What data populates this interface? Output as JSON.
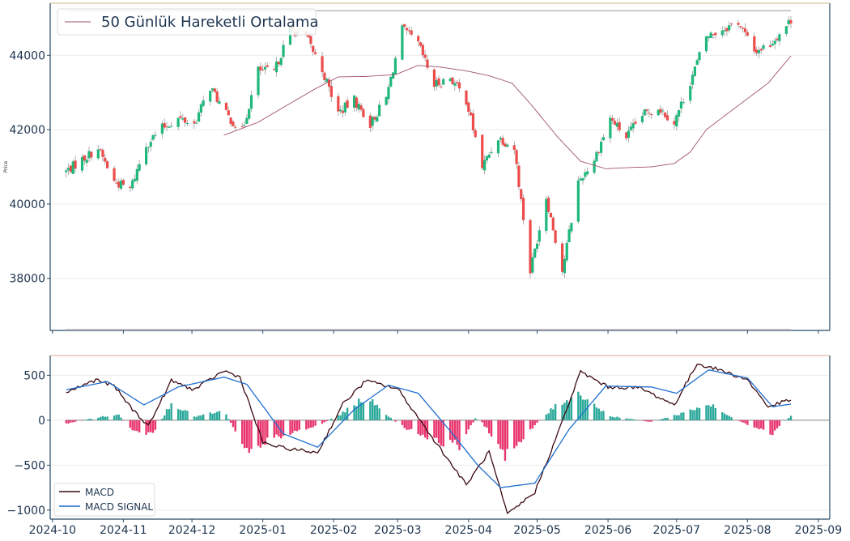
{
  "chart_data": [
    {
      "type": "candlestick",
      "ylabel": "Price",
      "yticks": [
        38000,
        40000,
        42000,
        44000
      ],
      "ylim": [
        36600,
        45400
      ],
      "x_range": [
        "2024-10-07",
        "2025-08-20"
      ],
      "legend": {
        "placement": "top-left",
        "entries": [
          "50 Günlük Hareketli Ortalama"
        ]
      },
      "reference_lines": {
        "upper": 45200,
        "lower": 36620
      },
      "grid": true,
      "up_color": "#1db87a",
      "down_color": "#ee4b4b",
      "ma_color": "#a0526e",
      "anchors": [
        [
          "2024-10-07",
          40880
        ],
        [
          "2024-10-14",
          41200
        ],
        [
          "2024-10-21",
          41500
        ],
        [
          "2024-10-28",
          40600
        ],
        [
          "2024-11-04",
          40400
        ],
        [
          "2024-11-11",
          41600
        ],
        [
          "2024-11-18",
          42050
        ],
        [
          "2024-11-25",
          42300
        ],
        [
          "2024-12-02",
          42150
        ],
        [
          "2024-12-09",
          43150
        ],
        [
          "2024-12-16",
          42400
        ],
        [
          "2024-12-23",
          41950
        ],
        [
          "2024-12-30",
          43600
        ],
        [
          "2025-01-06",
          43550
        ],
        [
          "2025-01-13",
          44700
        ],
        [
          "2025-01-20",
          44500
        ],
        [
          "2025-01-27",
          43600
        ],
        [
          "2025-02-03",
          42450
        ],
        [
          "2025-02-10",
          42800
        ],
        [
          "2025-02-17",
          42150
        ],
        [
          "2025-02-24",
          42850
        ],
        [
          "2025-03-03",
          44700
        ],
        [
          "2025-03-10",
          44300
        ],
        [
          "2025-03-17",
          43200
        ],
        [
          "2025-03-24",
          43400
        ],
        [
          "2025-03-31",
          42800
        ],
        [
          "2025-04-07",
          41000
        ],
        [
          "2025-04-14",
          41800
        ],
        [
          "2025-04-21",
          41500
        ],
        [
          "2025-04-28",
          38200
        ],
        [
          "2025-05-05",
          40200
        ],
        [
          "2025-05-12",
          38200
        ],
        [
          "2025-05-19",
          40600
        ],
        [
          "2025-05-26",
          41200
        ],
        [
          "2025-06-02",
          42300
        ],
        [
          "2025-06-09",
          41800
        ],
        [
          "2025-06-16",
          42400
        ],
        [
          "2025-06-23",
          42600
        ],
        [
          "2025-06-30",
          42200
        ],
        [
          "2025-07-07",
          43300
        ],
        [
          "2025-07-14",
          44500
        ],
        [
          "2025-07-21",
          44700
        ],
        [
          "2025-07-28",
          44900
        ],
        [
          "2025-08-04",
          44100
        ],
        [
          "2025-08-11",
          44300
        ],
        [
          "2025-08-20",
          44950
        ]
      ],
      "ma50": [
        [
          "2024-12-15",
          41850
        ],
        [
          "2024-12-30",
          42200
        ],
        [
          "2025-01-10",
          42600
        ],
        [
          "2025-01-24",
          43100
        ],
        [
          "2025-02-03",
          43420
        ],
        [
          "2025-02-15",
          43430
        ],
        [
          "2025-02-28",
          43480
        ],
        [
          "2025-03-10",
          43730
        ],
        [
          "2025-03-20",
          43680
        ],
        [
          "2025-03-31",
          43580
        ],
        [
          "2025-04-10",
          43450
        ],
        [
          "2025-04-20",
          43250
        ],
        [
          "2025-04-28",
          42700
        ],
        [
          "2025-05-10",
          41800
        ],
        [
          "2025-05-20",
          41150
        ],
        [
          "2025-05-31",
          40950
        ],
        [
          "2025-06-10",
          40980
        ],
        [
          "2025-06-20",
          41000
        ],
        [
          "2025-06-30",
          41090
        ],
        [
          "2025-07-07",
          41400
        ],
        [
          "2025-07-14",
          42000
        ],
        [
          "2025-07-28",
          42650
        ],
        [
          "2025-08-10",
          43250
        ],
        [
          "2025-08-20",
          43980
        ]
      ]
    },
    {
      "type": "line+bar",
      "yticks": [
        500,
        0,
        -500,
        -1000
      ],
      "ylim": [
        -1100,
        720
      ],
      "xticks": [
        "2024-10",
        "2024-11",
        "2024-12",
        "2025-01",
        "2025-02",
        "2025-03",
        "2025-04",
        "2025-05",
        "2025-06",
        "2025-07",
        "2025-08",
        "2025-09"
      ],
      "legend": {
        "placement": "bottom-left"
      },
      "grid": true,
      "series": [
        {
          "name": "MACD",
          "color": "#3b0a10",
          "anchors": [
            [
              "2024-10-07",
              310
            ],
            [
              "2024-10-20",
              450
            ],
            [
              "2024-10-28",
              380
            ],
            [
              "2024-11-05",
              120
            ],
            [
              "2024-11-12",
              -60
            ],
            [
              "2024-11-22",
              440
            ],
            [
              "2024-12-02",
              340
            ],
            [
              "2024-12-15",
              550
            ],
            [
              "2024-12-22",
              480
            ],
            [
              "2025-01-01",
              -250
            ],
            [
              "2025-01-10",
              -310
            ],
            [
              "2025-01-25",
              -360
            ],
            [
              "2025-02-05",
              180
            ],
            [
              "2025-02-15",
              440
            ],
            [
              "2025-03-01",
              350
            ],
            [
              "2025-03-15",
              -150
            ],
            [
              "2025-03-31",
              -720
            ],
            [
              "2025-04-10",
              -350
            ],
            [
              "2025-04-18",
              -1050
            ],
            [
              "2025-04-30",
              -800
            ],
            [
              "2025-05-10",
              -150
            ],
            [
              "2025-05-20",
              540
            ],
            [
              "2025-06-01",
              370
            ],
            [
              "2025-06-15",
              360
            ],
            [
              "2025-06-30",
              170
            ],
            [
              "2025-07-10",
              630
            ],
            [
              "2025-07-20",
              560
            ],
            [
              "2025-08-01",
              450
            ],
            [
              "2025-08-10",
              150
            ],
            [
              "2025-08-20",
              230
            ]
          ]
        },
        {
          "name": "MACD SIGNAL",
          "color": "#1f6fd1",
          "anchors": [
            [
              "2024-10-07",
              340
            ],
            [
              "2024-10-25",
              430
            ],
            [
              "2024-11-10",
              170
            ],
            [
              "2024-11-25",
              370
            ],
            [
              "2024-12-15",
              480
            ],
            [
              "2024-12-25",
              400
            ],
            [
              "2025-01-10",
              -150
            ],
            [
              "2025-01-25",
              -300
            ],
            [
              "2025-02-10",
              120
            ],
            [
              "2025-02-25",
              390
            ],
            [
              "2025-03-10",
              300
            ],
            [
              "2025-03-25",
              -150
            ],
            [
              "2025-04-05",
              -500
            ],
            [
              "2025-04-15",
              -750
            ],
            [
              "2025-04-30",
              -700
            ],
            [
              "2025-05-15",
              -100
            ],
            [
              "2025-05-31",
              380
            ],
            [
              "2025-06-20",
              370
            ],
            [
              "2025-07-01",
              300
            ],
            [
              "2025-07-15",
              560
            ],
            [
              "2025-08-01",
              470
            ],
            [
              "2025-08-12",
              150
            ],
            [
              "2025-08-20",
              180
            ]
          ]
        }
      ],
      "histogram": {
        "name": "MACD histogram",
        "pos_color": "#2aa89a",
        "neg_color": "#e8356d",
        "anchors": [
          [
            "2024-10-07",
            -40
          ],
          [
            "2024-10-20",
            30
          ],
          [
            "2024-10-30",
            60
          ],
          [
            "2024-11-05",
            -130
          ],
          [
            "2024-11-14",
            -170
          ],
          [
            "2024-11-22",
            200
          ],
          [
            "2024-12-02",
            40
          ],
          [
            "2024-12-15",
            100
          ],
          [
            "2024-12-25",
            -320
          ],
          [
            "2025-01-10",
            -160
          ],
          [
            "2025-01-25",
            -60
          ],
          [
            "2025-02-05",
            80
          ],
          [
            "2025-02-15",
            260
          ],
          [
            "2025-03-01",
            -40
          ],
          [
            "2025-03-15",
            -220
          ],
          [
            "2025-03-28",
            -280
          ],
          [
            "2025-04-05",
            60
          ],
          [
            "2025-04-17",
            -420
          ],
          [
            "2025-04-30",
            -50
          ],
          [
            "2025-05-10",
            180
          ],
          [
            "2025-05-20",
            300
          ],
          [
            "2025-06-01",
            50
          ],
          [
            "2025-06-20",
            -20
          ],
          [
            "2025-07-01",
            60
          ],
          [
            "2025-07-15",
            180
          ],
          [
            "2025-07-25",
            30
          ],
          [
            "2025-08-05",
            -100
          ],
          [
            "2025-08-12",
            -150
          ],
          [
            "2025-08-20",
            50
          ]
        ]
      }
    }
  ]
}
